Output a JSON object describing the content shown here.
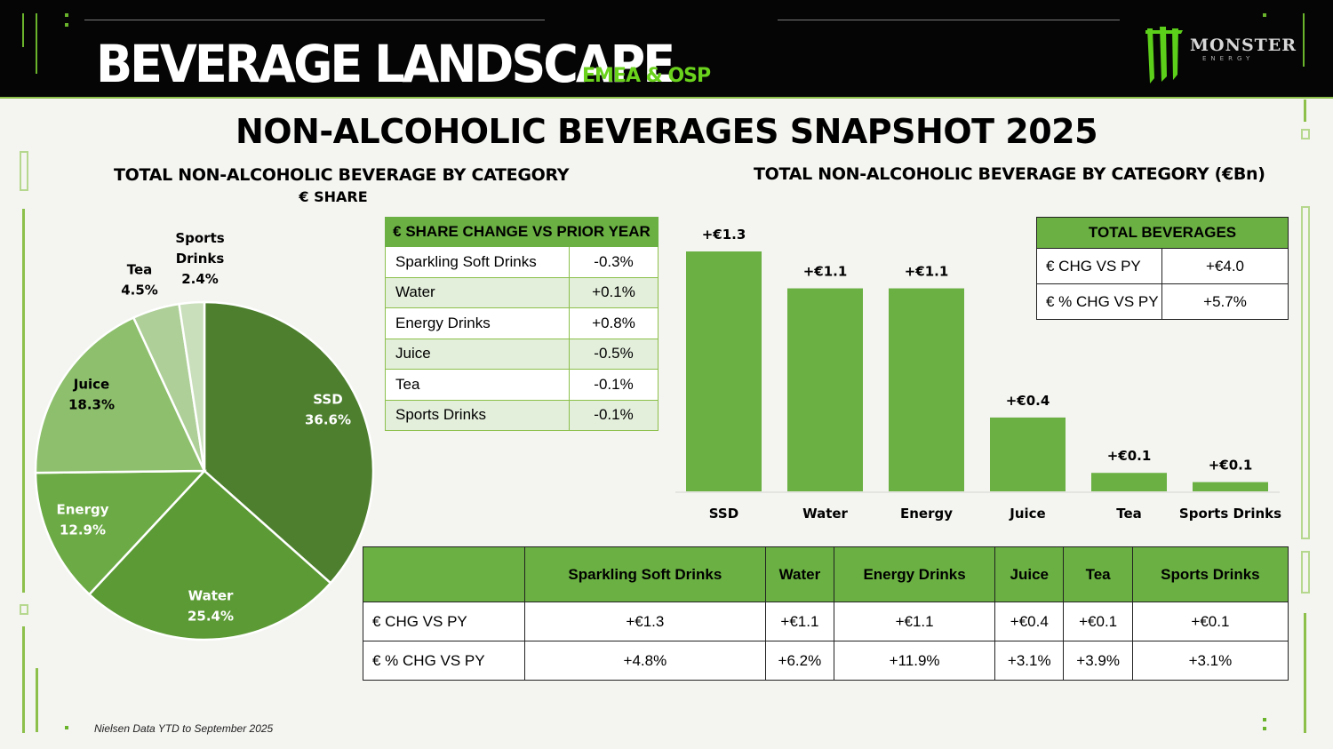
{
  "header": {
    "title": "BEVERAGE LANDSCAPE",
    "region": "EMEA & OSP",
    "logo_text": "MONSTER",
    "logo_sub": "ENERGY"
  },
  "page_title": "NON-ALCOHOLIC BEVERAGES SNAPSHOT 2025",
  "pie_section": {
    "title": "TOTAL NON-ALCOHOLIC BEVERAGE BY CATEGORY",
    "subtitle": "€ SHARE"
  },
  "bar_section": {
    "title": "TOTAL NON-ALCOHOLIC BEVERAGE BY CATEGORY (€Bn)"
  },
  "share_change_table": {
    "header": "€ SHARE CHANGE VS PRIOR YEAR",
    "rows": [
      {
        "category": "Sparkling Soft Drinks",
        "value": "-0.3%"
      },
      {
        "category": "Water",
        "value": "+0.1%"
      },
      {
        "category": "Energy Drinks",
        "value": "+0.8%"
      },
      {
        "category": "Juice",
        "value": "-0.5%"
      },
      {
        "category": "Tea",
        "value": "-0.1%"
      },
      {
        "category": "Sports Drinks",
        "value": "-0.1%"
      }
    ]
  },
  "total_beverages_table": {
    "header": "TOTAL BEVERAGES",
    "rows": [
      {
        "label": "€ CHG VS PY",
        "value": "+€4.0"
      },
      {
        "label": "€ % CHG VS PY",
        "value": "+5.7%"
      }
    ]
  },
  "change_table": {
    "columns": [
      "Sparkling Soft Drinks",
      "Water",
      "Energy Drinks",
      "Juice",
      "Tea",
      "Sports Drinks"
    ],
    "rows": [
      {
        "label": "€ CHG VS PY",
        "values": [
          "+€1.3",
          "+€1.1",
          "+€1.1",
          "+€0.4",
          "+€0.1",
          "+€0.1"
        ]
      },
      {
        "label": "€ % CHG VS PY",
        "values": [
          "+4.8%",
          "+6.2%",
          "+11.9%",
          "+3.1%",
          "+3.9%",
          "+3.1%"
        ]
      }
    ]
  },
  "footnote": "Nielsen Data YTD to September 2025",
  "colors": {
    "header_bg": "#050505",
    "accent_green": "#6ad21c",
    "bar_green": "#6ab042",
    "table_header_green": "#6ab042",
    "pie_ssd": "#4d7f2e",
    "pie_water": "#5c9a36",
    "pie_energy": "#6caa45",
    "pie_juice": "#8dbf6c",
    "pie_tea": "#aecf98",
    "pie_sports": "#c9dfbb"
  },
  "chart_data": [
    {
      "type": "pie",
      "title": "TOTAL NON-ALCOHOLIC BEVERAGE BY CATEGORY",
      "subtitle": "€ SHARE",
      "slices": [
        {
          "label": "SSD",
          "value": 36.6,
          "display": "36.6%",
          "color": "#4d7f2e"
        },
        {
          "label": "Water",
          "value": 25.4,
          "display": "25.4%",
          "color": "#5c9a36"
        },
        {
          "label": "Energy",
          "value": 12.9,
          "display": "12.9%",
          "color": "#6caa45"
        },
        {
          "label": "Juice",
          "value": 18.3,
          "display": "18.3%",
          "color": "#8dbf6c"
        },
        {
          "label": "Tea",
          "value": 4.5,
          "display": "4.5%",
          "color": "#aecf98"
        },
        {
          "label": "Sports Drinks",
          "value": 2.4,
          "display": "2.4%",
          "color": "#c9dfbb"
        }
      ]
    },
    {
      "type": "bar",
      "title": "TOTAL NON-ALCOHOLIC BEVERAGE BY CATEGORY (€Bn)",
      "categories": [
        "SSD",
        "Water",
        "Energy",
        "Juice",
        "Tea",
        "Sports Drinks"
      ],
      "values": [
        1.3,
        1.1,
        1.1,
        0.4,
        0.1,
        0.05
      ],
      "data_labels": [
        "+€1.3",
        "+€1.1",
        "+€1.1",
        "+€0.4",
        "+€0.1",
        "+€0.1"
      ],
      "xlabel": "",
      "ylabel": "",
      "ylim": [
        0,
        1.3
      ],
      "grid": false,
      "color": "#6ab042"
    }
  ]
}
